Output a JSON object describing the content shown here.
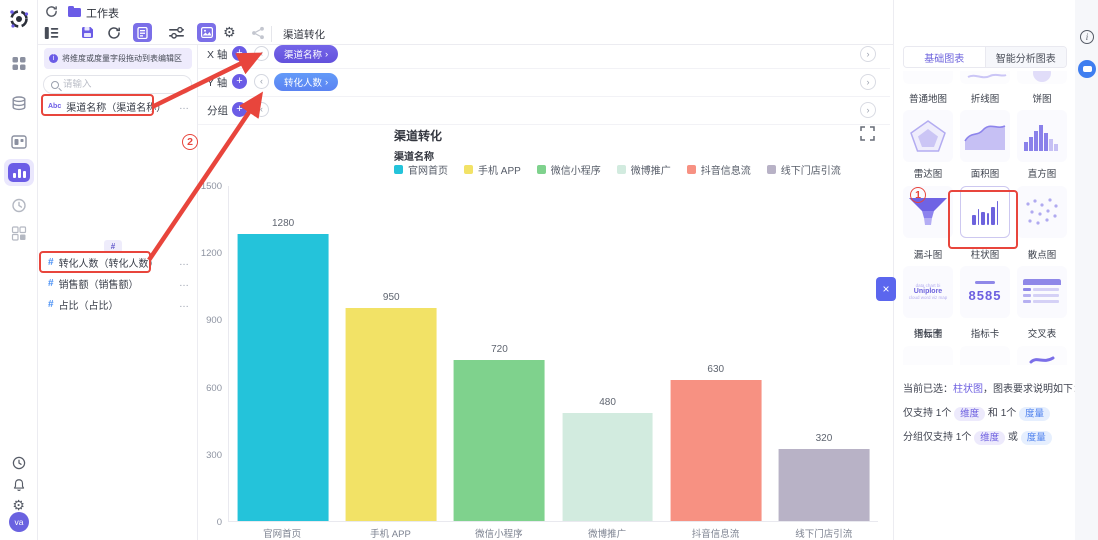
{
  "icons": {
    "plus": "+",
    "chevron_left": "‹",
    "chevron_right": "›",
    "close": "×",
    "more": "…",
    "info": "i",
    "gear": "⚙",
    "search": "search"
  },
  "topbar": {
    "workspace_title": "工作表",
    "sheet_tab": "渠道转化",
    "toolbar_icons": [
      "outline",
      "save",
      "refresh",
      "report-card",
      "filter",
      "image-card",
      "settings",
      "share"
    ]
  },
  "rail": {
    "icons_top": [
      "logo",
      "apps",
      "database",
      "cards",
      "worksheet-active",
      "clock",
      "widgets"
    ],
    "icons_bottom": [
      "history",
      "notifications",
      "settings"
    ],
    "avatar": "va"
  },
  "fields_panel": {
    "hint": "将维度或度量字段拖动到表编辑区",
    "search_placeholder": "请输入",
    "ghost_chip": "#",
    "fields": [
      {
        "type": "Abc",
        "label": "渠道名称（渠道名称）"
      },
      {
        "type": "#",
        "label": "转化人数（转化人数）"
      },
      {
        "type": "#",
        "label": "销售额（销售额）"
      },
      {
        "type": "#",
        "label": "占比（占比）"
      }
    ]
  },
  "config": {
    "x_axis_label": "X 轴",
    "y_axis_label": "Y 轴",
    "group_label": "分组",
    "x_pill": "渠道名称",
    "y_pill": "转化人数"
  },
  "chart_data": {
    "type": "bar",
    "title": "渠道转化",
    "legend_title": "渠道名称",
    "categories": [
      "官网首页",
      "手机 APP",
      "微信小程序",
      "微博推广",
      "抖音信息流",
      "线下门店引流"
    ],
    "values": [
      1280,
      950,
      720,
      480,
      630,
      320
    ],
    "colors": [
      "#24c3da",
      "#f2e266",
      "#7fd28d",
      "#d2ebdf",
      "#f79182",
      "#b8b2c6"
    ],
    "xlabel": "",
    "ylabel": "",
    "ylim": [
      0,
      1500
    ],
    "yticks": [
      0,
      300,
      600,
      900,
      1200,
      1500
    ],
    "grid": false,
    "legend_position": "top"
  },
  "right_panel": {
    "tabs": [
      {
        "label": "基础图表",
        "active": true
      },
      {
        "label": "智能分析图表",
        "active": false
      }
    ],
    "chart_types": [
      {
        "label": "普通地图"
      },
      {
        "label": "折线图"
      },
      {
        "label": "饼图"
      },
      {
        "label": "雷达图"
      },
      {
        "label": "面积图"
      },
      {
        "label": "直方图"
      },
      {
        "label": "漏斗图"
      },
      {
        "label": "柱状图",
        "selected": true
      },
      {
        "label": "散点图"
      },
      {
        "label": "词云图",
        "sample_words": "Uniplore"
      },
      {
        "label": "指标卡",
        "sample_value": "8585"
      },
      {
        "label": "交叉表"
      }
    ],
    "note": {
      "prefix": "当前已选：",
      "selected": "柱状图",
      "suffix": "，图表要求说明如下：",
      "rule1_a": "仅支持 1个",
      "rule1_dim": "维度",
      "rule1_b": "和 1个",
      "rule1_mea": "度量",
      "rule2_a": "分组仅支持 1个",
      "rule2_dim": "维度",
      "rule2_b": "或",
      "rule2_mea": "度量"
    }
  },
  "annotations": {
    "step1": "1",
    "step2": "2"
  },
  "colors": {
    "accent": "#6b5ce6",
    "x_pill": "#6a5be0",
    "y_pill": "#5c8df6",
    "annotation_red": "#e8453c"
  }
}
